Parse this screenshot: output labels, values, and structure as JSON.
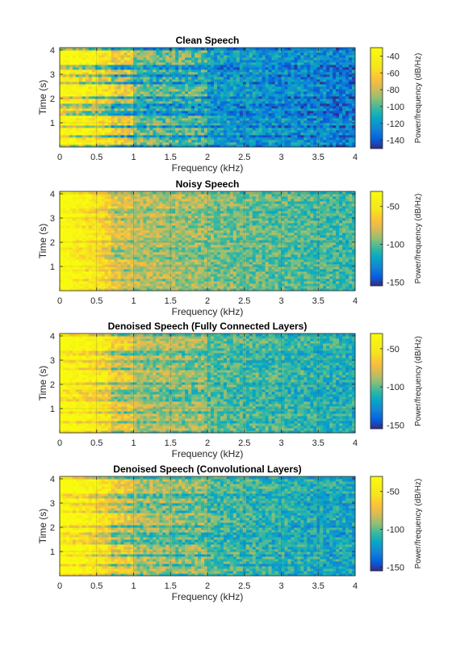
{
  "colormap": "parula",
  "colors": {
    "axis": "#262626",
    "background": "#ffffff",
    "low": "#352a87",
    "mid": "#2db7a2",
    "high": "#f9fb0e"
  },
  "chart_data": [
    {
      "type": "heatmap",
      "title": "Clean Speech",
      "xlabel": "Frequency (kHz)",
      "ylabel": "Time (s)",
      "xlim": [
        0,
        4
      ],
      "ylim": [
        0,
        4.1
      ],
      "xticks": [
        "0",
        "0.5",
        "1",
        "1.5",
        "2",
        "2.5",
        "3",
        "3.5",
        "4"
      ],
      "yticks": [
        "1",
        "2",
        "3",
        "4"
      ],
      "colorbar_label": "Power/frequency (dB/Hz)",
      "colorbar_ticks": [
        "-40",
        "-60",
        "-80",
        "-100",
        "-120",
        "-140"
      ],
      "color_range": [
        -150,
        -30
      ],
      "grid": true
    },
    {
      "type": "heatmap",
      "title": "Noisy Speech",
      "xlabel": "Frequency (kHz)",
      "ylabel": "Time (s)",
      "xlim": [
        0,
        4
      ],
      "ylim": [
        0,
        4.1
      ],
      "xticks": [
        "0",
        "0.5",
        "1",
        "1.5",
        "2",
        "2.5",
        "3",
        "3.5",
        "4"
      ],
      "yticks": [
        "1",
        "2",
        "3",
        "4"
      ],
      "colorbar_label": "Power/frequency (dB/Hz)",
      "colorbar_ticks": [
        "-50",
        "-100",
        "-150"
      ],
      "color_range": [
        -155,
        -30
      ],
      "grid": true
    },
    {
      "type": "heatmap",
      "title": "Denoised Speech (Fully Connected Layers)",
      "xlabel": "Frequency (kHz)",
      "ylabel": "Time (s)",
      "xlim": [
        0,
        4
      ],
      "ylim": [
        0,
        4.1
      ],
      "xticks": [
        "0",
        "0.5",
        "1",
        "1.5",
        "2",
        "2.5",
        "3",
        "3.5",
        "4"
      ],
      "yticks": [
        "1",
        "2",
        "3",
        "4"
      ],
      "colorbar_label": "Power/frequency (dB/Hz)",
      "colorbar_ticks": [
        "-50",
        "-100",
        "-150"
      ],
      "color_range": [
        -155,
        -30
      ],
      "grid": true
    },
    {
      "type": "heatmap",
      "title": "Denoised Speech (Convolutional Layers)",
      "xlabel": "Frequency (kHz)",
      "ylabel": "Time (s)",
      "xlim": [
        0,
        4
      ],
      "ylim": [
        0,
        4.1
      ],
      "xticks": [
        "0",
        "0.5",
        "1",
        "1.5",
        "2",
        "2.5",
        "3",
        "3.5",
        "4"
      ],
      "yticks": [
        "1",
        "2",
        "3",
        "4"
      ],
      "colorbar_label": "Power/frequency (dB/Hz)",
      "colorbar_ticks": [
        "-50",
        "-100",
        "-150"
      ],
      "color_range": [
        -155,
        -30
      ],
      "grid": true
    }
  ]
}
